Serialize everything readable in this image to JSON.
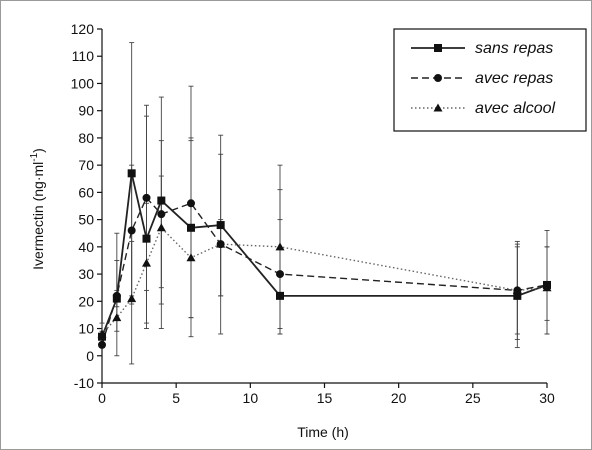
{
  "chart_data": {
    "type": "line",
    "title": "",
    "xlabel": "Time (h)",
    "ylabel_main": "Ivermectin (ng·ml",
    "ylabel_sup": "-1",
    "ylabel_tail": ")",
    "xlim": [
      0,
      30
    ],
    "ylim": [
      -10,
      120
    ],
    "xticks": [
      0,
      5,
      10,
      15,
      20,
      25,
      30
    ],
    "yticks": [
      -10,
      0,
      10,
      20,
      30,
      40,
      50,
      60,
      70,
      80,
      90,
      100,
      110,
      120
    ],
    "grid": false,
    "legend_position": "top-right",
    "series": [
      {
        "name": "sans repas",
        "marker": "square",
        "line_style": "solid",
        "color": "#222222",
        "x": [
          0,
          1,
          2,
          3,
          4,
          6,
          8,
          12,
          28,
          30
        ],
        "y": [
          7,
          21,
          67,
          43,
          57,
          47,
          48,
          22,
          22,
          26
        ],
        "err_upper": [
          9,
          24,
          115,
          88,
          95,
          80,
          74,
          50,
          41,
          40
        ],
        "err_lower": [
          4,
          18,
          19,
          10,
          19,
          14,
          22,
          8,
          8,
          8
        ]
      },
      {
        "name": "avec repas",
        "marker": "circle",
        "line_style": "dashed",
        "color": "#222222",
        "x": [
          0,
          1,
          2,
          3,
          4,
          6,
          8,
          12,
          28,
          30
        ],
        "y": [
          4,
          22,
          46,
          58,
          52,
          56,
          41,
          30,
          24,
          26
        ],
        "err_upper": [
          6,
          35,
          70,
          92,
          79,
          99,
          81,
          61,
          42,
          46
        ],
        "err_lower": [
          3,
          9,
          22,
          24,
          25,
          7,
          8,
          8,
          6,
          13
        ]
      },
      {
        "name": "avec alcool",
        "marker": "triangle",
        "line_style": "dotted",
        "color": "#666666",
        "x": [
          0,
          1,
          2,
          3,
          4,
          6,
          8,
          12,
          28,
          30
        ],
        "y": [
          8,
          14,
          21,
          34,
          47,
          36,
          41,
          40,
          24,
          25
        ],
        "err_upper": [
          12,
          45,
          42,
          56,
          66,
          79,
          50,
          70,
          40,
          40
        ],
        "err_lower": [
          4,
          0,
          -3,
          12,
          10,
          14,
          22,
          10,
          3,
          8
        ]
      }
    ]
  }
}
